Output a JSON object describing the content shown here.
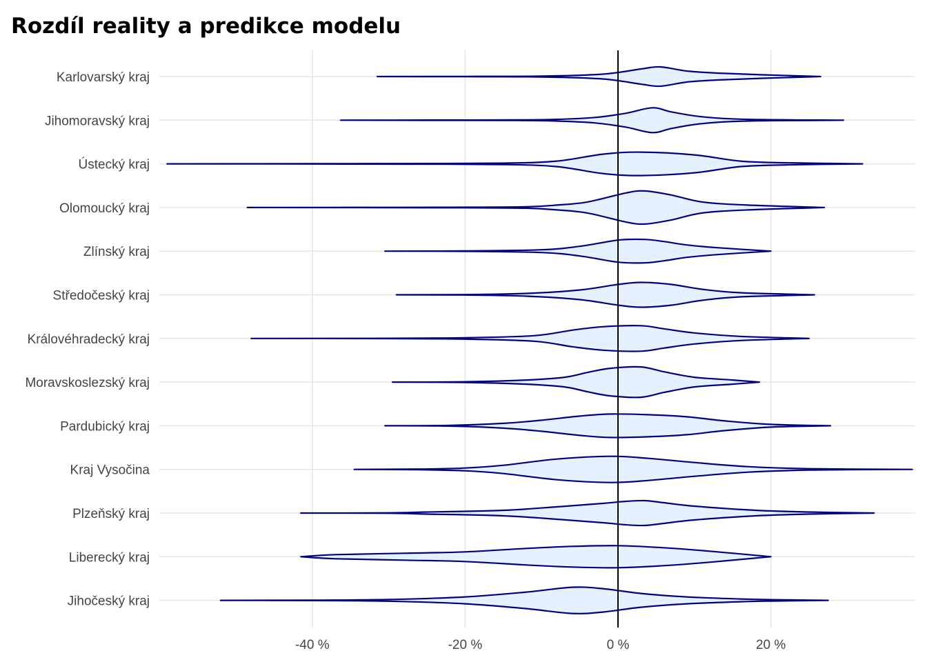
{
  "title": "Rozdíl reality a predikce modelu",
  "chart_data": {
    "type": "violin",
    "title": "Rozdíl reality a predikce modelu",
    "xlabel": "",
    "ylabel": "",
    "xlim": [
      -59.5,
      39
    ],
    "x_ticks": [
      -40,
      -20,
      0,
      20
    ],
    "x_tick_labels": [
      "-40 %",
      "-20 %",
      "0 %",
      "20 %"
    ],
    "reference_line_x": 0,
    "grid": true,
    "fill_color": "#e3f0ff",
    "line_color": "#000080",
    "categories": [
      {
        "name": "Karlovarský kraj",
        "profile": [
          [
            -31.5,
            0
          ],
          [
            -20,
            0.2
          ],
          [
            -10,
            0.6
          ],
          [
            -2,
            3.5
          ],
          [
            3,
            11
          ],
          [
            5.5,
            14
          ],
          [
            9,
            8
          ],
          [
            13,
            5
          ],
          [
            19,
            2.5
          ],
          [
            26.5,
            0
          ]
        ]
      },
      {
        "name": "Jihomoravský kraj",
        "profile": [
          [
            -36.3,
            0
          ],
          [
            -25,
            0.2
          ],
          [
            -13,
            0.4
          ],
          [
            -8,
            1.2
          ],
          [
            -3,
            4
          ],
          [
            1,
            10
          ],
          [
            4.5,
            18
          ],
          [
            7,
            12
          ],
          [
            11,
            5
          ],
          [
            17,
            1.2
          ],
          [
            29.5,
            0
          ]
        ]
      },
      {
        "name": "Ústecký kraj",
        "profile": [
          [
            -59,
            0
          ],
          [
            -40,
            0.2
          ],
          [
            -28,
            0.4
          ],
          [
            -15,
            1
          ],
          [
            -8,
            4
          ],
          [
            -2,
            14
          ],
          [
            3,
            17
          ],
          [
            10,
            13
          ],
          [
            16,
            4
          ],
          [
            22,
            1.5
          ],
          [
            32,
            0
          ]
        ]
      },
      {
        "name": "Olomoucký kraj",
        "profile": [
          [
            -48.5,
            0
          ],
          [
            -30,
            0.2
          ],
          [
            -20,
            0.4
          ],
          [
            -12,
            1
          ],
          [
            -8,
            3.5
          ],
          [
            -4,
            8
          ],
          [
            1,
            21
          ],
          [
            3.5,
            24
          ],
          [
            7,
            18
          ],
          [
            11,
            8
          ],
          [
            17,
            3.5
          ],
          [
            27,
            0
          ]
        ]
      },
      {
        "name": "Zlínský kraj",
        "profile": [
          [
            -30.5,
            0
          ],
          [
            -20,
            0.3
          ],
          [
            -10,
            2
          ],
          [
            -5,
            7
          ],
          [
            0,
            16
          ],
          [
            3.5,
            17
          ],
          [
            6,
            14
          ],
          [
            9,
            9
          ],
          [
            13,
            5
          ],
          [
            20,
            0
          ]
        ]
      },
      {
        "name": "Středočeský kraj",
        "profile": [
          [
            -29,
            0
          ],
          [
            -20,
            0.3
          ],
          [
            -12,
            2
          ],
          [
            -5,
            7
          ],
          [
            0,
            15
          ],
          [
            3,
            18
          ],
          [
            7,
            15
          ],
          [
            11,
            8
          ],
          [
            16,
            3
          ],
          [
            25.7,
            0
          ]
        ]
      },
      {
        "name": "Královéhradecký kraj",
        "profile": [
          [
            -48,
            0
          ],
          [
            -30,
            0.2
          ],
          [
            -20,
            1
          ],
          [
            -11,
            4
          ],
          [
            -6,
            12
          ],
          [
            -2,
            17
          ],
          [
            3,
            18.5
          ],
          [
            6,
            14
          ],
          [
            10,
            8
          ],
          [
            16,
            3
          ],
          [
            25,
            0
          ]
        ]
      },
      {
        "name": "Moravskoslezský kraj",
        "profile": [
          [
            -29.5,
            0
          ],
          [
            -20,
            0.5
          ],
          [
            -12,
            3
          ],
          [
            -7,
            7
          ],
          [
            -4,
            14
          ],
          [
            -1,
            20
          ],
          [
            3,
            22
          ],
          [
            6,
            15
          ],
          [
            10,
            7
          ],
          [
            15,
            3
          ],
          [
            18.5,
            0
          ]
        ]
      },
      {
        "name": "Pardubický kraj",
        "profile": [
          [
            -30.5,
            0
          ],
          [
            -22,
            0.5
          ],
          [
            -15,
            3.5
          ],
          [
            -10,
            8
          ],
          [
            -5,
            14
          ],
          [
            -1,
            17
          ],
          [
            4,
            16
          ],
          [
            9,
            13
          ],
          [
            14,
            7
          ],
          [
            20,
            2
          ],
          [
            27.8,
            0
          ]
        ]
      },
      {
        "name": "Kraj Vysočina",
        "profile": [
          [
            -34.5,
            0
          ],
          [
            -26,
            0.5
          ],
          [
            -20,
            2
          ],
          [
            -15,
            6
          ],
          [
            -8,
            15
          ],
          [
            -1,
            19
          ],
          [
            4,
            16
          ],
          [
            10,
            10
          ],
          [
            17,
            4
          ],
          [
            25,
            1
          ],
          [
            38.5,
            0
          ]
        ]
      },
      {
        "name": "Plzeňský kraj",
        "profile": [
          [
            -41.5,
            0
          ],
          [
            -30,
            0.3
          ],
          [
            -25,
            1.5
          ],
          [
            -15,
            4
          ],
          [
            -8,
            9
          ],
          [
            -2,
            14
          ],
          [
            1,
            17
          ],
          [
            3.5,
            18
          ],
          [
            6,
            15
          ],
          [
            10,
            10
          ],
          [
            18,
            4
          ],
          [
            25,
            1.5
          ],
          [
            33.5,
            0
          ]
        ]
      },
      {
        "name": "Liberecký kraj",
        "profile": [
          [
            -41.5,
            0
          ],
          [
            -37,
            3
          ],
          [
            -28,
            5
          ],
          [
            -20,
            7
          ],
          [
            -12,
            12
          ],
          [
            -6,
            15
          ],
          [
            0,
            16
          ],
          [
            6,
            13
          ],
          [
            12,
            8
          ],
          [
            20,
            0
          ]
        ]
      },
      {
        "name": "Jihočeský kraj",
        "profile": [
          [
            -52,
            0
          ],
          [
            -40,
            0.3
          ],
          [
            -30,
            1.2
          ],
          [
            -20,
            5
          ],
          [
            -12,
            12
          ],
          [
            -6,
            19
          ],
          [
            -2,
            17
          ],
          [
            3,
            10
          ],
          [
            9,
            5
          ],
          [
            16,
            2
          ],
          [
            20,
            1
          ],
          [
            27.5,
            0
          ]
        ]
      }
    ]
  }
}
